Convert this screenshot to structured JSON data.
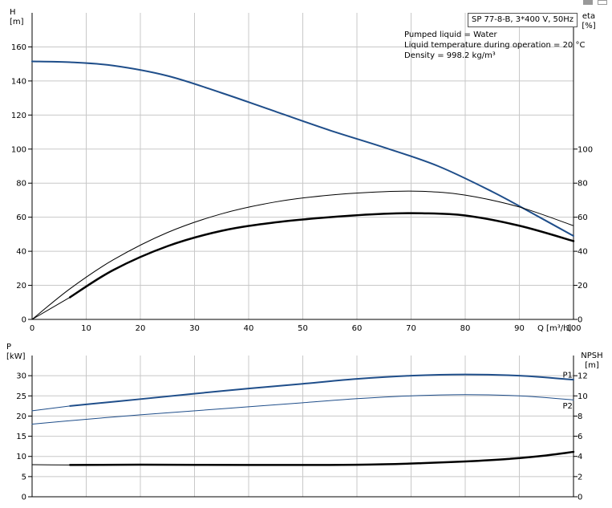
{
  "header": {
    "pump_label": "SP 77-8-B, 3*400 V, 50Hz",
    "notes": [
      "Pumped liquid = Water",
      "Liquid temperature during operation = 20 °C",
      "Density = 998.2 kg/m³"
    ]
  },
  "colors": {
    "blue": "#1f4e8a",
    "black": "#000000",
    "grid": "#c8c8c8"
  },
  "chart_data": [
    {
      "type": "line",
      "name": "upper",
      "xlabel": "Q [m³/h]",
      "ylabel_left": [
        "H",
        "[m]"
      ],
      "ylabel_right": [
        "eta",
        "[%]"
      ],
      "xlim": [
        0,
        100
      ],
      "ylim_left": [
        0,
        180
      ],
      "ylim_right": [
        0,
        180
      ],
      "x_ticks": [
        0,
        10,
        20,
        30,
        40,
        50,
        60,
        70,
        80,
        90,
        100
      ],
      "y_ticks_left": [
        0,
        20,
        40,
        60,
        80,
        100,
        120,
        140,
        160
      ],
      "y_ticks_right": [
        0,
        20,
        40,
        60,
        80,
        100
      ],
      "grid": true,
      "series": [
        {
          "axis": "left",
          "color": "#1f4e8a",
          "width": 2,
          "x": [
            0,
            7,
            15,
            25,
            35,
            45,
            55,
            65,
            75,
            85,
            92,
            100
          ],
          "y": [
            151.5,
            151,
            149,
            143,
            133,
            122,
            111,
            101,
            90,
            75,
            63,
            49
          ]
        },
        {
          "axis": "left",
          "color": "#1f4e8a",
          "width": 1,
          "x": [
            0,
            7
          ],
          "y": [
            151.5,
            151
          ]
        },
        {
          "axis": "right",
          "color": "#000000",
          "width": 1,
          "x": [
            0,
            7,
            15,
            25,
            35,
            45,
            55,
            65,
            72,
            80,
            90,
            100
          ],
          "y": [
            0,
            18,
            35,
            51,
            62,
            69,
            73,
            75,
            75.2,
            73,
            66,
            55
          ]
        },
        {
          "axis": "right",
          "color": "#000000",
          "width": 2.5,
          "x": [
            7,
            15,
            25,
            35,
            45,
            55,
            65,
            72,
            80,
            90,
            100
          ],
          "y": [
            13,
            29,
            43,
            52,
            57,
            60,
            62,
            62.3,
            61,
            55,
            46
          ]
        },
        {
          "axis": "right",
          "color": "#000000",
          "width": 1,
          "x": [
            0,
            7
          ],
          "y": [
            0,
            13
          ]
        }
      ]
    },
    {
      "type": "line",
      "name": "lower",
      "ylabel_left": [
        "P",
        "[kW]"
      ],
      "ylabel_right": [
        "NPSH",
        "[m]"
      ],
      "xlim": [
        0,
        100
      ],
      "ylim_left": [
        0,
        35
      ],
      "ylim_right": [
        0,
        14
      ],
      "y_ticks_left": [
        0,
        5,
        10,
        15,
        20,
        25,
        30
      ],
      "y_ticks_right": [
        0,
        2,
        4,
        6,
        8,
        10,
        12
      ],
      "grid": true,
      "series": [
        {
          "axis": "left",
          "name": "P1",
          "color": "#1f4e8a",
          "width": 2,
          "x": [
            7,
            20,
            35,
            50,
            60,
            70,
            80,
            90,
            100
          ],
          "y": [
            22.5,
            24.2,
            26.2,
            28,
            29.2,
            30,
            30.3,
            30,
            29
          ]
        },
        {
          "axis": "left",
          "color": "#1f4e8a",
          "width": 1,
          "x": [
            0,
            7
          ],
          "y": [
            21.3,
            22.5
          ]
        },
        {
          "axis": "left",
          "name": "P2",
          "color": "#1f4e8a",
          "width": 1,
          "x": [
            0,
            10,
            20,
            35,
            50,
            60,
            70,
            80,
            90,
            100
          ],
          "y": [
            18,
            19.2,
            20.3,
            21.8,
            23.3,
            24.3,
            25,
            25.3,
            25,
            24
          ]
        },
        {
          "axis": "right",
          "color": "#000000",
          "width": 2.5,
          "x": [
            7,
            20,
            40,
            55,
            65,
            72,
            80,
            88,
            95,
            100
          ],
          "y": [
            3.15,
            3.18,
            3.15,
            3.15,
            3.22,
            3.33,
            3.5,
            3.75,
            4.1,
            4.45
          ]
        },
        {
          "axis": "right",
          "color": "#000000",
          "width": 1,
          "x": [
            0,
            7
          ],
          "y": [
            3.18,
            3.15
          ]
        }
      ],
      "series_labels": [
        {
          "text": "P1",
          "x": 98,
          "y": 30.2
        },
        {
          "text": "P2",
          "x": 98,
          "y": 22.6
        }
      ]
    }
  ]
}
